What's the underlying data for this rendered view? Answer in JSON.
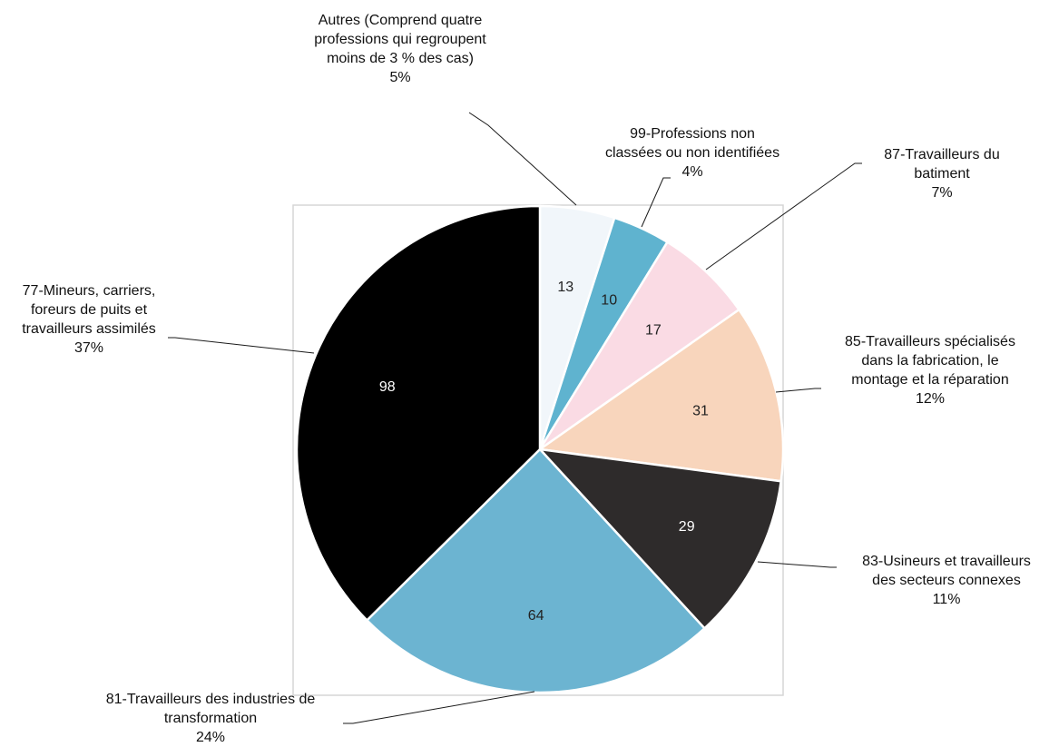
{
  "chart_data": {
    "type": "pie",
    "title": "",
    "slices": [
      {
        "label_lines": [
          "Autres (Comprend quatre",
          "professions qui regroupent",
          "moins de 3 % des cas)"
        ],
        "value": 13,
        "percent": "5%",
        "color": "#f1f6fa"
      },
      {
        "label_lines": [
          "99-Professions non",
          "classées ou non identifiées"
        ],
        "value": 10,
        "percent": "4%",
        "color": "#5fb3cf"
      },
      {
        "label_lines": [
          "87-Travailleurs du",
          "batiment"
        ],
        "value": 17,
        "percent": "7%",
        "color": "#fadbe4"
      },
      {
        "label_lines": [
          "85-Travailleurs spécialisés",
          "dans la fabrication, le",
          "montage et la réparation"
        ],
        "value": 31,
        "percent": "12%",
        "color": "#f8d5bc"
      },
      {
        "label_lines": [
          "83-Usineurs et travailleurs",
          "des secteurs connexes"
        ],
        "value": 29,
        "percent": "11%",
        "color": "#2e2b2b"
      },
      {
        "label_lines": [
          "81-Travailleurs des industries de",
          "transformation"
        ],
        "value": 64,
        "percent": "24%",
        "color": "#6cb4d1"
      },
      {
        "label_lines": [
          "77-Mineurs, carriers,",
          "foreurs de puits et",
          "travailleurs assimilés"
        ],
        "value": 98,
        "percent": "37%",
        "color": "#000000"
      }
    ],
    "value_label_colors": [
      "#222222",
      "#222222",
      "#222222",
      "#222222",
      "#ffffff",
      "#222222",
      "#ffffff"
    ],
    "legend": "none"
  }
}
